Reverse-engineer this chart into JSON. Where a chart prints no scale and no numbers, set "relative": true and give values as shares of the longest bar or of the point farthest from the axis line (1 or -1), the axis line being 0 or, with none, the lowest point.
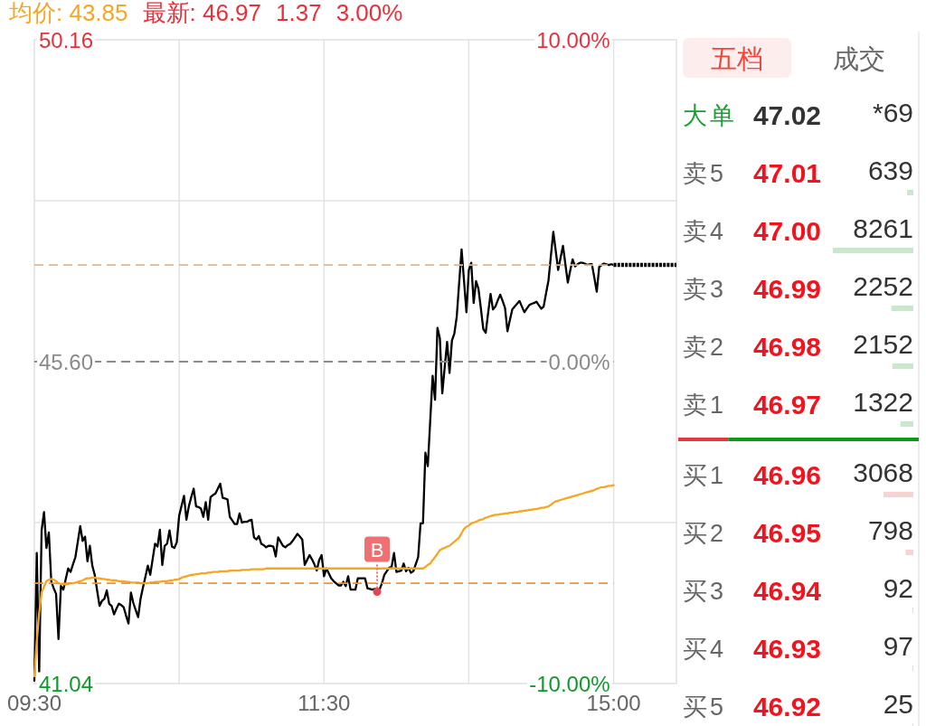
{
  "chart_data": [
    {
      "type": "line",
      "legend": "top left",
      "grid": true,
      "categories": [
        "09:30",
        null,
        null,
        null,
        null,
        null,
        null,
        null,
        null,
        null,
        null,
        null,
        null,
        null,
        null,
        null,
        null,
        null,
        null,
        null,
        null,
        null,
        null,
        null,
        null,
        null,
        null,
        null,
        null,
        null,
        null,
        null,
        null,
        null,
        null,
        null,
        null,
        null,
        null,
        null,
        null,
        null,
        null,
        null,
        null,
        null,
        null,
        null,
        null,
        null,
        null,
        null,
        null,
        null,
        null,
        null,
        null,
        null,
        null,
        null,
        null,
        null,
        null,
        null,
        null,
        null,
        null,
        null,
        null,
        null,
        null,
        null,
        null,
        null,
        null,
        null,
        null,
        null,
        null,
        null,
        null,
        null,
        null,
        null,
        null,
        null,
        null,
        null,
        null,
        null,
        null,
        null,
        null,
        null,
        null,
        null,
        null,
        null,
        null,
        null,
        null,
        null,
        null,
        null,
        null,
        null,
        null,
        null,
        null,
        null,
        null,
        null,
        null,
        null,
        null,
        null,
        null,
        null,
        null,
        null,
        "11:30",
        null,
        null,
        null,
        null,
        null,
        null,
        null,
        null,
        null,
        null,
        null,
        null,
        null,
        null,
        null,
        null,
        null,
        null,
        null,
        null,
        null,
        null,
        null,
        null,
        null,
        null,
        null,
        null,
        null,
        null,
        null,
        null,
        null,
        null,
        null,
        null,
        null,
        null,
        null,
        null,
        null,
        null,
        null,
        null,
        null,
        null,
        null,
        null,
        null,
        null,
        null,
        null,
        null,
        null,
        null,
        null,
        null,
        null,
        null,
        null,
        null,
        null,
        null,
        null,
        null,
        null,
        null,
        null,
        null,
        null,
        null,
        null,
        null,
        null,
        null,
        null,
        null,
        null,
        null,
        null,
        null,
        null,
        null,
        null,
        null,
        null,
        null,
        null,
        null,
        null,
        null,
        null,
        null,
        null,
        null,
        null,
        null,
        null,
        null,
        null,
        null,
        null,
        null,
        null,
        null,
        null,
        null,
        null,
        null,
        null,
        null,
        null,
        null,
        null,
        null,
        null,
        null,
        null,
        null,
        "15:00",
        null,
        null,
        null,
        null,
        null,
        null,
        null,
        null,
        null,
        null,
        null,
        null,
        null,
        null,
        null,
        null,
        null,
        null,
        null,
        null,
        null,
        null,
        null,
        null,
        null,
        null
      ],
      "ylim": [
        41.04,
        50.16
      ],
      "yticks": [
        41.04,
        {
          "value": 43.32,
          "label": null
        },
        {
          "value": 45.6,
          "label": "45.60"
        },
        {
          "value": 47.88,
          "label": null
        },
        50.16
      ],
      "y2lim": [
        -10,
        10
      ],
      "y2ticks": [
        {
          "value": -10,
          "label": "-10.00%"
        },
        {
          "value": 0,
          "label": "0.00%"
        },
        {
          "value": 10,
          "label": "10.00%"
        }
      ],
      "series": [
        {
          "type": "line",
          "color": "#000000",
          "values": [
            41.08,
            42.89,
            41.2,
            43.21,
            43.47,
            42.96,
            43.18,
            42.49,
            42.39,
            42.31,
            41.67,
            42.42,
            42.37,
            42.52,
            42.67,
            42.62,
            42.73,
            42.83,
            43.05,
            43.27,
            43.06,
            43.12,
            42.77,
            42.99,
            42.71,
            42.58,
            42.36,
            42.14,
            42.21,
            42.24,
            42.36,
            42.17,
            42.14,
            42.02,
            42.1,
            42.17,
            42.15,
            42.12,
            42.0,
            41.89,
            42.33,
            42.18,
            42.08,
            41.98,
            42.24,
            42.4,
            42.55,
            42.71,
            42.58,
            42.8,
            43.02,
            42.98,
            43.22,
            42.72,
            42.99,
            43.02,
            43.21,
            42.98,
            42.96,
            43.04,
            43.42,
            43.56,
            43.7,
            43.36,
            43.55,
            43.68,
            43.8,
            43.55,
            43.54,
            43.52,
            43.4,
            43.61,
            43.36,
            43.68,
            43.71,
            43.73,
            43.8,
            43.87,
            43.67,
            43.66,
            43.65,
            43.4,
            43.35,
            43.3,
            43.3,
            43.45,
            43.32,
            43.33,
            43.33,
            43.35,
            43.36,
            43.11,
            43.08,
            43.13,
            43.02,
            43.0,
            42.97,
            42.99,
            42.99,
            42.98,
            42.84,
            43.11,
            43.05,
            42.99,
            42.97,
            43.0,
            43.02,
            43.06,
            43.11,
            43.16,
            43.12,
            43.08,
            42.72,
            42.79,
            42.86,
            42.8,
            42.73,
            42.64,
            42.79,
            42.86,
            42.56,
            42.67,
            42.6,
            42.53,
            42.49,
            42.46,
            42.43,
            42.43,
            42.48,
            42.42,
            42.56,
            42.37,
            42.37,
            42.37,
            42.53,
            42.53,
            42.53,
            42.53,
            42.39,
            42.38,
            42.37,
            42.38,
            42.37,
            42.37,
            42.46,
            42.58,
            42.63,
            42.68,
            42.69,
            42.89,
            42.62,
            42.63,
            42.64,
            42.74,
            42.63,
            42.68,
            42.61,
            42.63,
            42.73,
            42.83,
            43.31,
            43.31,
            44.31,
            44.12,
            44.76,
            45.4,
            45.06,
            46.08,
            45.93,
            45.15,
            45.52,
            45.88,
            45.44,
            45.9,
            46.0,
            46.24,
            46.72,
            47.19,
            46.75,
            46.3,
            46.9,
            47.0,
            46.43,
            46.74,
            46.63,
            46.35,
            46.06,
            46.01,
            46.29,
            46.56,
            46.34,
            46.38,
            46.47,
            46.55,
            46.46,
            46.36,
            46.03,
            46.19,
            46.34,
            46.38,
            46.42,
            46.46,
            46.38,
            46.3,
            46.35,
            46.4,
            46.42,
            46.43,
            46.45,
            46.4,
            46.35,
            46.38,
            46.57,
            46.75,
            47.1,
            47.44,
            47.17,
            46.9,
            47.07,
            47.24,
            46.98,
            46.72,
            46.89,
            47.05,
            46.95,
            46.98,
            47.0,
            47.0,
            46.99,
            46.97,
            46.98,
            46.98,
            46.79,
            46.59,
            46.94,
            46.97,
            46.99,
            46.98,
            46.97,
            46.98,
            46.97,
            null,
            null,
            null,
            null,
            null,
            null,
            null,
            null,
            null,
            null,
            null,
            null,
            null,
            null,
            null,
            null,
            null,
            null,
            null,
            null,
            null,
            null,
            null,
            null,
            null,
            null
          ]
        },
        {
          "type": "line",
          "name": "均价: 43.85",
          "color": "#f5a623",
          "values": [
            41.14,
            41.64,
            42.04,
            42.33,
            42.41,
            42.49,
            42.51,
            42.52,
            42.51,
            42.49,
            42.46,
            42.45,
            42.45,
            42.44,
            42.45,
            42.46,
            42.46,
            42.47,
            42.48,
            42.49,
            42.5,
            42.52,
            42.53,
            42.53,
            42.54,
            42.54,
            42.53,
            42.53,
            42.52,
            42.52,
            42.51,
            42.51,
            42.5,
            42.5,
            42.5,
            42.49,
            42.49,
            42.49,
            42.48,
            42.48,
            42.47,
            42.47,
            42.47,
            42.47,
            42.46,
            42.46,
            42.46,
            42.46,
            42.47,
            42.47,
            42.48,
            42.48,
            42.48,
            42.49,
            42.49,
            42.49,
            42.5,
            42.5,
            42.51,
            42.51,
            42.52,
            42.54,
            42.55,
            42.56,
            42.57,
            42.58,
            42.58,
            42.59,
            42.59,
            42.6,
            42.6,
            42.6,
            42.61,
            42.61,
            42.62,
            42.62,
            42.62,
            42.63,
            42.63,
            42.63,
            42.63,
            42.64,
            42.64,
            42.64,
            42.64,
            42.64,
            42.65,
            42.65,
            42.65,
            42.65,
            42.66,
            42.66,
            42.66,
            42.66,
            42.66,
            42.66,
            42.67,
            42.67,
            42.67,
            42.67,
            42.67,
            42.67,
            42.67,
            42.67,
            42.67,
            42.67,
            42.67,
            42.67,
            42.67,
            42.67,
            42.67,
            42.67,
            42.67,
            42.67,
            42.67,
            42.67,
            42.67,
            42.67,
            42.67,
            42.67,
            42.67,
            42.67,
            42.67,
            42.67,
            42.67,
            42.67,
            42.67,
            42.67,
            42.67,
            42.67,
            42.67,
            42.67,
            42.67,
            42.67,
            42.67,
            42.67,
            42.67,
            42.67,
            42.67,
            42.67,
            42.67,
            42.67,
            42.67,
            42.67,
            42.67,
            42.67,
            42.67,
            42.67,
            42.67,
            42.67,
            42.67,
            42.67,
            42.67,
            42.67,
            42.67,
            42.67,
            42.67,
            42.67,
            42.67,
            42.67,
            42.67,
            42.67,
            42.69,
            42.72,
            42.74,
            42.79,
            42.83,
            42.88,
            42.93,
            42.95,
            42.96,
            42.98,
            42.99,
            43.02,
            43.05,
            43.08,
            43.11,
            43.17,
            43.23,
            43.26,
            43.28,
            43.31,
            43.32,
            43.33,
            43.35,
            43.36,
            43.37,
            43.39,
            43.4,
            43.41,
            43.42,
            43.43,
            43.43,
            43.44,
            43.44,
            43.45,
            43.45,
            43.46,
            43.46,
            43.47,
            43.47,
            43.48,
            43.48,
            43.49,
            43.49,
            43.5,
            43.5,
            43.51,
            43.51,
            43.52,
            43.53,
            43.53,
            43.54,
            43.55,
            43.57,
            43.6,
            43.62,
            43.63,
            43.64,
            43.65,
            43.66,
            43.67,
            43.68,
            43.69,
            43.7,
            43.71,
            43.72,
            43.73,
            43.74,
            43.75,
            43.76,
            43.77,
            43.78,
            43.8,
            43.81,
            43.82,
            43.82,
            43.83,
            43.84,
            43.84,
            43.85,
            null,
            null,
            null,
            null,
            null,
            null,
            null,
            null,
            null,
            null,
            null,
            null,
            null,
            null,
            null,
            null,
            null,
            null,
            null,
            null,
            null,
            null,
            null,
            null,
            null,
            null
          ]
        },
        {
          "type": "line",
          "color": "#000000",
          "line_style": "dotted",
          "values": [
            null,
            null,
            null,
            null,
            null,
            null,
            null,
            null,
            null,
            null,
            null,
            null,
            null,
            null,
            null,
            null,
            null,
            null,
            null,
            null,
            null,
            null,
            null,
            null,
            null,
            null,
            null,
            null,
            null,
            null,
            null,
            null,
            null,
            null,
            null,
            null,
            null,
            null,
            null,
            null,
            null,
            null,
            null,
            null,
            null,
            null,
            null,
            null,
            null,
            null,
            null,
            null,
            null,
            null,
            null,
            null,
            null,
            null,
            null,
            null,
            null,
            null,
            null,
            null,
            null,
            null,
            null,
            null,
            null,
            null,
            null,
            null,
            null,
            null,
            null,
            null,
            null,
            null,
            null,
            null,
            null,
            null,
            null,
            null,
            null,
            null,
            null,
            null,
            null,
            null,
            null,
            null,
            null,
            null,
            null,
            null,
            null,
            null,
            null,
            null,
            null,
            null,
            null,
            null,
            null,
            null,
            null,
            null,
            null,
            null,
            null,
            null,
            null,
            null,
            null,
            null,
            null,
            null,
            null,
            null,
            null,
            null,
            null,
            null,
            null,
            null,
            null,
            null,
            null,
            null,
            null,
            null,
            null,
            null,
            null,
            null,
            null,
            null,
            null,
            null,
            null,
            null,
            null,
            null,
            null,
            null,
            null,
            null,
            null,
            null,
            null,
            null,
            null,
            null,
            null,
            null,
            null,
            null,
            null,
            null,
            null,
            null,
            null,
            null,
            null,
            null,
            null,
            null,
            null,
            null,
            null,
            null,
            null,
            null,
            null,
            null,
            null,
            null,
            null,
            null,
            null,
            null,
            null,
            null,
            null,
            null,
            null,
            null,
            null,
            null,
            null,
            null,
            null,
            null,
            null,
            null,
            null,
            null,
            null,
            null,
            null,
            null,
            null,
            null,
            null,
            null,
            null,
            null,
            null,
            null,
            null,
            null,
            null,
            null,
            null,
            null,
            null,
            null,
            null,
            null,
            null,
            null,
            null,
            null,
            null,
            null,
            null,
            null,
            null,
            null,
            null,
            null,
            null,
            null,
            null,
            null,
            null,
            null,
            null,
            null,
            46.97,
            46.97,
            46.97,
            46.97,
            46.97,
            46.97,
            46.97,
            46.97,
            46.97,
            46.97,
            46.97,
            46.97,
            46.97,
            46.97,
            46.97,
            46.97,
            46.97,
            46.97,
            46.97,
            46.97,
            46.97,
            46.97,
            46.97,
            46.97,
            46.97,
            46.97,
            46.97
          ]
        },
        {
          "type": "scatter",
          "marker": "circle",
          "color": "#e2474f",
          "values": [
            null,
            null,
            null,
            null,
            null,
            null,
            null,
            null,
            null,
            null,
            null,
            null,
            null,
            null,
            null,
            null,
            null,
            null,
            null,
            null,
            null,
            null,
            null,
            null,
            null,
            null,
            null,
            null,
            null,
            null,
            null,
            null,
            null,
            null,
            null,
            null,
            null,
            null,
            null,
            null,
            null,
            null,
            null,
            null,
            null,
            null,
            null,
            null,
            null,
            null,
            null,
            null,
            null,
            null,
            null,
            null,
            null,
            null,
            null,
            null,
            null,
            null,
            null,
            null,
            null,
            null,
            null,
            null,
            null,
            null,
            null,
            null,
            null,
            null,
            null,
            null,
            null,
            null,
            null,
            null,
            null,
            null,
            null,
            null,
            null,
            null,
            null,
            null,
            null,
            null,
            null,
            null,
            null,
            null,
            null,
            null,
            null,
            null,
            null,
            null,
            null,
            null,
            null,
            null,
            null,
            null,
            null,
            null,
            null,
            null,
            null,
            null,
            null,
            null,
            null,
            null,
            null,
            null,
            null,
            null,
            null,
            null,
            null,
            null,
            null,
            null,
            null,
            null,
            null,
            null,
            null,
            null,
            null,
            null,
            null,
            null,
            null,
            null,
            null,
            null,
            null,
            null,
            42.34,
            null,
            null,
            null,
            null,
            null,
            null,
            null,
            null,
            null,
            null,
            null,
            null,
            null,
            null,
            null,
            null,
            null,
            null,
            null,
            null,
            null,
            null,
            null,
            null,
            null,
            null,
            null,
            null,
            null,
            null,
            null,
            null,
            null,
            null,
            null,
            null,
            null,
            null,
            null,
            null,
            null,
            null,
            null,
            null,
            null,
            null,
            null,
            null,
            null,
            null,
            null,
            null,
            null,
            null,
            null,
            null,
            null,
            null,
            null,
            null,
            null,
            null,
            null,
            null,
            null,
            null,
            null,
            null,
            null,
            null,
            null,
            null,
            null,
            null,
            null,
            null,
            null,
            null,
            null,
            null,
            null,
            null,
            null,
            null,
            null,
            null,
            null,
            null,
            null,
            null,
            null,
            null,
            null,
            null,
            null,
            null,
            null,
            null,
            null,
            null,
            null,
            null,
            null,
            null,
            null,
            null,
            null,
            null,
            null,
            null,
            null,
            null,
            null,
            null,
            null,
            null,
            null,
            null,
            null,
            null,
            null,
            null,
            null,
            null
          ],
          "value_labels": [
            null,
            null,
            null,
            null,
            null,
            null,
            null,
            null,
            null,
            null,
            null,
            null,
            null,
            null,
            null,
            null,
            null,
            null,
            null,
            null,
            null,
            null,
            null,
            null,
            null,
            null,
            null,
            null,
            null,
            null,
            null,
            null,
            null,
            null,
            null,
            null,
            null,
            null,
            null,
            null,
            null,
            null,
            null,
            null,
            null,
            null,
            null,
            null,
            null,
            null,
            null,
            null,
            null,
            null,
            null,
            null,
            null,
            null,
            null,
            null,
            null,
            null,
            null,
            null,
            null,
            null,
            null,
            null,
            null,
            null,
            null,
            null,
            null,
            null,
            null,
            null,
            null,
            null,
            null,
            null,
            null,
            null,
            null,
            null,
            null,
            null,
            null,
            null,
            null,
            null,
            null,
            null,
            null,
            null,
            null,
            null,
            null,
            null,
            null,
            null,
            null,
            null,
            null,
            null,
            null,
            null,
            null,
            null,
            null,
            null,
            null,
            null,
            null,
            null,
            null,
            null,
            null,
            null,
            null,
            null,
            null,
            null,
            null,
            null,
            null,
            null,
            null,
            null,
            null,
            null,
            null,
            null,
            null,
            null,
            null,
            null,
            null,
            null,
            null,
            null,
            null,
            null,
            "B",
            null,
            null,
            null,
            null,
            null,
            null,
            null,
            null,
            null,
            null,
            null,
            null,
            null,
            null,
            null,
            null,
            null,
            null,
            null,
            null,
            null,
            null,
            null,
            null,
            null,
            null,
            null,
            null,
            null,
            null,
            null,
            null,
            null,
            null,
            null,
            null,
            null,
            null,
            null,
            null,
            null,
            null,
            null,
            null,
            null,
            null,
            null,
            null,
            null,
            null,
            null,
            null,
            null,
            null,
            null,
            null,
            null,
            null,
            null,
            null,
            null,
            null,
            null,
            null,
            null,
            null,
            null,
            null,
            null,
            null,
            null,
            null,
            null,
            null,
            null,
            null,
            null,
            null,
            null,
            null,
            null,
            null,
            null,
            null,
            null,
            null,
            null,
            null,
            null,
            null,
            null,
            null,
            null,
            null,
            null,
            null,
            null,
            null,
            null,
            null,
            null,
            null,
            null,
            null,
            null,
            null,
            null,
            null,
            null,
            null,
            null,
            null,
            null,
            null,
            null,
            null,
            null,
            null,
            null,
            null,
            null,
            null,
            null,
            null
          ]
        }
      ],
      "ref_lines": [
        {
          "axis": "y",
          "value": 45.6,
          "color": "#8c8c8c",
          "line_style": "dashed"
        },
        {
          "axis": "y",
          "value": 46.97,
          "color": "#dcb98c",
          "line_style": "dashed"
        },
        {
          "axis": "y",
          "value": 42.46,
          "color": "#f7922e",
          "line_style": "dashed"
        }
      ],
      "annotations": [
        "最新: 46.97",
        "1.37",
        "3.00%"
      ]
    },
    {
      "type": "bar",
      "orientation": "horizontal",
      "title": "五档",
      "categories": [
        "大单",
        "卖5",
        "卖4",
        "卖3",
        "卖2",
        "卖1",
        "买1",
        "买2",
        "买3",
        "买4",
        "买5"
      ],
      "values": [
        null,
        639,
        8261,
        2252,
        2152,
        1322,
        3068,
        798,
        92,
        97,
        25
      ],
      "value_labels": [
        "*69",
        "639",
        "8261",
        "2252",
        "2152",
        "1322",
        "3068",
        "798",
        "92",
        "97",
        "25"
      ],
      "colors": [
        null,
        "#c9e7cc",
        "#c9e7cc",
        "#c9e7cc",
        "#c9e7cc",
        "#c9e7cc",
        "#f9d2d2",
        "#f9d2d2",
        "#f9d2d2",
        "#f9d2d2",
        "#f9d2d2"
      ],
      "annotations": [
        "成交",
        "47.02",
        "47.01",
        "47.00",
        "46.99",
        "46.98",
        "46.97",
        "46.96",
        "46.95",
        "46.94",
        "46.93",
        "46.92"
      ]
    },
    {
      "type": "bar",
      "orientation": "horizontal",
      "stacked": true,
      "relative": true,
      "categories": [
        null
      ],
      "series": [
        {
          "color": "#e0393e",
          "values": [
            0.21
          ]
        },
        {
          "color": "#0c9a14",
          "values": [
            0.79
          ]
        }
      ]
    }
  ]
}
